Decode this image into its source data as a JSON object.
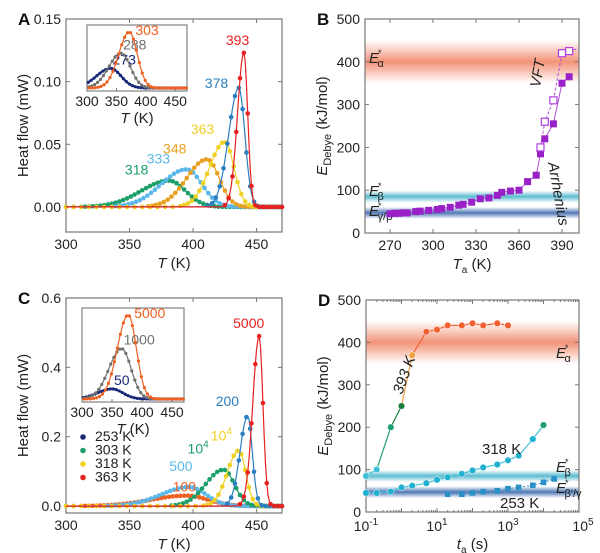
{
  "chart_data": [
    {
      "panel": "A",
      "type": "line",
      "xlabel": "T (K)",
      "ylabel": "Heat flow (mW)",
      "xlim": [
        300,
        470
      ],
      "ylim": [
        -0.02,
        0.15
      ],
      "xticks": [
        "300",
        "350",
        "400",
        "450"
      ],
      "yticks": [
        "0.00",
        "0.05",
        "0.10",
        "0.15"
      ],
      "series": [
        {
          "name": "318",
          "color": "#1a9e6a",
          "peak_T": 381,
          "peak": 0.021,
          "width": 22
        },
        {
          "name": "333",
          "color": "#5cb8e8",
          "peak_T": 395,
          "peak": 0.03,
          "width": 20
        },
        {
          "name": "348",
          "color": "#e8a020",
          "peak_T": 411,
          "peak": 0.038,
          "width": 16
        },
        {
          "name": "363",
          "color": "#f0d020",
          "peak_T": 425,
          "peak": 0.052,
          "width": 12
        },
        {
          "name": "378",
          "color": "#2a7fc0",
          "peak_T": 436,
          "peak": 0.095,
          "width": 8
        },
        {
          "name": "393",
          "color": "#e82020",
          "peak_T": 440,
          "peak": 0.123,
          "width": 5
        }
      ],
      "inset": {
        "xlabel": "T (K)",
        "xlim": [
          300,
          470
        ],
        "xticks": [
          "300",
          "350",
          "400",
          "450"
        ],
        "series": [
          {
            "name": "273",
            "color": "#1a2a7a",
            "peak_T": 340,
            "peak": 0.35
          },
          {
            "name": "288",
            "color": "#707070",
            "peak_T": 358,
            "peak": 0.62
          },
          {
            "name": "303",
            "color": "#f06020",
            "peak_T": 372,
            "peak": 1.0
          }
        ]
      }
    },
    {
      "panel": "B",
      "type": "scatter",
      "xlabel": "Ta (K)",
      "ylabel": "E*Debye (kJ/mol)",
      "xlim": [
        260,
        402
      ],
      "ylim": [
        0,
        500
      ],
      "xticks": [
        "270",
        "300",
        "330",
        "360",
        "390"
      ],
      "yticks": [
        "0",
        "100",
        "200",
        "300",
        "400",
        "500"
      ],
      "bands": [
        {
          "label": "E*α",
          "center": 400,
          "half": 50,
          "color": "#f08060"
        },
        {
          "label": "E*β",
          "center": 85,
          "half": 14,
          "color": "#40b0c8"
        },
        {
          "label": "E*γ/β'",
          "center": 47,
          "half": 14,
          "color": "#3060a8"
        }
      ],
      "series": [
        {
          "name": "Arrhenius",
          "marker": "filled-square",
          "color": "#9a20c8",
          "x": [
            270,
            273,
            276,
            279,
            282,
            288,
            291,
            297,
            303,
            306,
            312,
            318,
            321,
            327,
            333,
            339,
            345,
            348,
            354,
            360,
            366,
            372,
            375,
            378,
            384,
            390,
            395
          ],
          "y": [
            45,
            46,
            46,
            47,
            47,
            50,
            51,
            53,
            55,
            57,
            60,
            65,
            67,
            72,
            80,
            82,
            88,
            95,
            98,
            100,
            120,
            135,
            185,
            220,
            255,
            350,
            365
          ]
        },
        {
          "name": "VFT",
          "marker": "open-square",
          "color": "#b040e0",
          "x": [
            375,
            378,
            384,
            390,
            395
          ],
          "y": [
            200,
            260,
            310,
            420,
            425
          ]
        }
      ],
      "annotations": [
        "VFT",
        "Arrhenius"
      ]
    },
    {
      "panel": "C",
      "type": "line",
      "xlabel": "T (K)",
      "ylabel": "Heat flow (mW)",
      "xlim": [
        300,
        470
      ],
      "ylim": [
        -0.02,
        0.6
      ],
      "xticks": [
        "300",
        "350",
        "400",
        "450"
      ],
      "yticks": [
        "0.0",
        "0.2",
        "0.4",
        "0.6"
      ],
      "legend": [
        {
          "label": "253 K",
          "color": "#1a2a7a"
        },
        {
          "label": "303 K",
          "color": "#1a9e6a"
        },
        {
          "label": "318 K",
          "color": "#f0d020"
        },
        {
          "label": "363 K",
          "color": "#e82020"
        }
      ],
      "series": [
        {
          "name": "100",
          "color": "#f06020",
          "peak_T": 395,
          "peak": 0.03,
          "width": 28
        },
        {
          "name": "500",
          "color": "#5cb8e8",
          "peak_T": 397,
          "peak": 0.055,
          "width": 22
        },
        {
          "name": "10^4",
          "color": "#1a9e6a",
          "peak_T": 424,
          "peak": 0.105,
          "width": 14
        },
        {
          "name": "10^4",
          "color": "#f0d020",
          "peak_T": 436,
          "peak": 0.16,
          "width": 9
        },
        {
          "name": "200",
          "color": "#2a7fc0",
          "peak_T": 443,
          "peak": 0.26,
          "width": 6
        },
        {
          "name": "5000",
          "color": "#e82020",
          "peak_T": 452,
          "peak": 0.49,
          "width": 5
        }
      ],
      "inset": {
        "xlabel": "T (K)",
        "xticks": [
          "300",
          "350",
          "400",
          "450"
        ],
        "series": [
          {
            "name": "50",
            "color": "#1a2a7a",
            "peak_T": 350,
            "peak": 0.12
          },
          {
            "name": "1000",
            "color": "#707070",
            "peak_T": 366,
            "peak": 0.6
          },
          {
            "name": "5000",
            "color": "#f06020",
            "peak_T": 377,
            "peak": 1.0
          }
        ]
      }
    },
    {
      "panel": "D",
      "type": "scatter",
      "xlabel": "ta (s)",
      "ylabel": "E*Debye (kJ/mol)",
      "xscale": "log",
      "xlim": [
        0.1,
        100000
      ],
      "ylim": [
        0,
        500
      ],
      "xticks": [
        "10^-1",
        "10^1",
        "10^3",
        "10^5"
      ],
      "yticks": [
        "0",
        "100",
        "200",
        "300",
        "400",
        "500"
      ],
      "bands": [
        {
          "label": "E*α",
          "center": 400,
          "half": 50,
          "color": "#f08060"
        },
        {
          "label": "E*β",
          "center": 85,
          "half": 14,
          "color": "#40b0c8"
        },
        {
          "label": "E*β'/γ",
          "center": 47,
          "half": 14,
          "color": "#3060a8"
        }
      ],
      "series": [
        {
          "name": "393 K",
          "x": [
            0.1,
            0.2,
            0.5,
            1,
            2,
            5,
            10,
            20,
            50,
            100,
            200,
            500,
            1000
          ],
          "y": [
            85,
            100,
            200,
            250,
            370,
            425,
            430,
            440,
            440,
            445,
            440,
            445,
            440
          ]
        },
        {
          "name": "318 K",
          "color": "#40c0d8",
          "x": [
            0.1,
            0.2,
            0.5,
            1,
            2,
            5,
            10,
            20,
            50,
            100,
            200,
            500,
            1000,
            2000,
            5000,
            10000
          ],
          "y": [
            45,
            45,
            48,
            58,
            62,
            68,
            76,
            82,
            90,
            98,
            105,
            112,
            122,
            133,
            172,
            205
          ]
        },
        {
          "name": "253 K",
          "color": "#2a90c8",
          "x": [
            20,
            50,
            100,
            200,
            500,
            1000,
            2000,
            5000,
            10000,
            20000
          ],
          "y": [
            42,
            42,
            45,
            48,
            50,
            55,
            58,
            63,
            70,
            78
          ]
        }
      ]
    }
  ],
  "labels": {
    "A": "A",
    "B": "B",
    "C": "C",
    "D": "D",
    "heatflow": "Heat flow (mW)",
    "T": "T",
    "K": " (K)",
    "Ta": "T",
    "Ta_sub": "a",
    "ta": "t",
    "ta_sub": "a",
    "s": " (s)",
    "E": "E",
    "E_sub": "Debye",
    "kjmol": " (kJ/mol)",
    "VFT": "VFT",
    "Arrhenius": "Arrhenius",
    "K393": "393 K",
    "K318": "318 K",
    "K253": "253 K",
    "alpha": "α",
    "beta": "β",
    "gammabeta": "γ/β'",
    "betagamma": "β'/γ"
  }
}
